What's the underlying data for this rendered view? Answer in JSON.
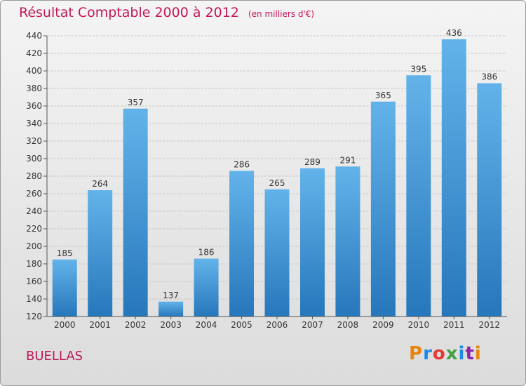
{
  "title": "Résultat Comptable 2000 à 2012",
  "unit_label": "(en milliers d'€)",
  "commune": "BUELLAS",
  "brand": "Proxiti",
  "colors": {
    "title": "#c2185b",
    "bar_top": "#63b3ea",
    "bar_bottom": "#2677bb"
  },
  "chart_data": {
    "type": "bar",
    "title": "Résultat Comptable 2000 à 2012",
    "xlabel": "",
    "ylabel": "",
    "categories": [
      "2000",
      "2001",
      "2002",
      "2003",
      "2004",
      "2005",
      "2006",
      "2007",
      "2008",
      "2009",
      "2010",
      "2011",
      "2012"
    ],
    "values": [
      185,
      264,
      357,
      137,
      186,
      286,
      265,
      289,
      291,
      365,
      395,
      436,
      386
    ],
    "ylim": [
      120,
      440
    ],
    "yticks": [
      120,
      140,
      160,
      180,
      200,
      220,
      240,
      260,
      280,
      300,
      320,
      340,
      360,
      380,
      400,
      420,
      440
    ],
    "grid": true
  }
}
